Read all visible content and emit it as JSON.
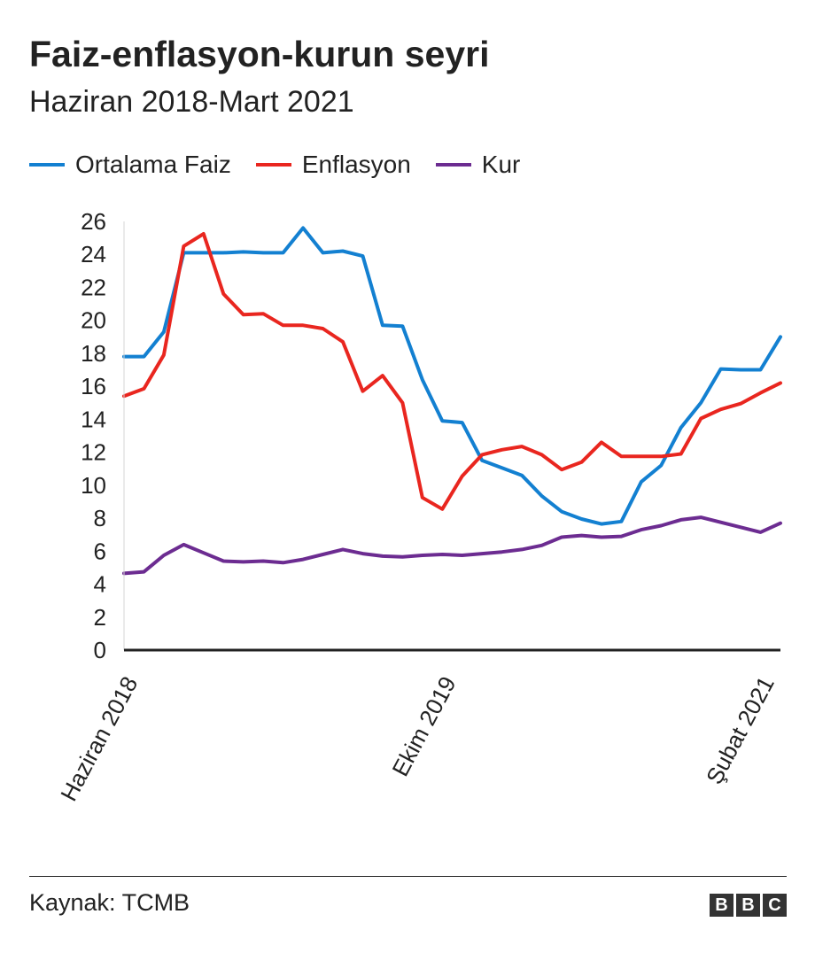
{
  "chart_data": {
    "type": "line",
    "title": "Faiz-enflasyon-kurun seyri",
    "subtitle": "Haziran 2018-Mart 2021",
    "xlabel": "",
    "ylabel": "",
    "ylim": [
      0,
      26
    ],
    "yticks": [
      "0",
      "2",
      "4",
      "6",
      "8",
      "10",
      "12",
      "14",
      "16",
      "18",
      "20",
      "22",
      "24",
      "26"
    ],
    "x_tick_labels": [
      {
        "index": 0,
        "label": "Haziran 2018"
      },
      {
        "index": 16,
        "label": "Ekim 2019"
      },
      {
        "index": 32,
        "label": "Şubat 2021"
      }
    ],
    "point_count": 34,
    "legend_position": "top-left",
    "series": [
      {
        "name": "Ortalama Faiz",
        "color": "#1380d1",
        "values": [
          17.8,
          17.8,
          19.3,
          24.1,
          24.1,
          24.1,
          24.15,
          24.1,
          24.1,
          25.6,
          24.1,
          24.2,
          23.9,
          19.7,
          19.65,
          16.4,
          13.9,
          13.8,
          11.5,
          11.05,
          10.6,
          9.35,
          8.4,
          7.95,
          7.65,
          7.8,
          10.2,
          11.2,
          13.5,
          15.0,
          17.05,
          17.0,
          17.0,
          19.0
        ]
      },
      {
        "name": "Enflasyon",
        "color": "#e9261f",
        "values": [
          15.4,
          15.85,
          17.9,
          24.5,
          25.25,
          21.6,
          20.35,
          20.4,
          19.7,
          19.7,
          19.5,
          18.7,
          15.7,
          16.65,
          15.0,
          9.25,
          8.55,
          10.55,
          11.85,
          12.15,
          12.35,
          11.85,
          10.95,
          11.4,
          12.6,
          11.75,
          11.75,
          11.75,
          11.9,
          14.05,
          14.6,
          14.95,
          15.6,
          16.2
        ]
      },
      {
        "name": "Kur",
        "color": "#6c2c91",
        "values": [
          4.65,
          4.75,
          5.75,
          6.4,
          5.9,
          5.4,
          5.35,
          5.4,
          5.3,
          5.5,
          5.8,
          6.1,
          5.85,
          5.7,
          5.65,
          5.75,
          5.8,
          5.75,
          5.85,
          5.95,
          6.1,
          6.35,
          6.85,
          6.95,
          6.85,
          6.9,
          7.3,
          7.55,
          7.9,
          8.05,
          7.75,
          7.45,
          7.15,
          7.7
        ]
      }
    ]
  },
  "source": "Kaynak: TCMB",
  "logo": {
    "letters": [
      "B",
      "B",
      "C"
    ]
  }
}
